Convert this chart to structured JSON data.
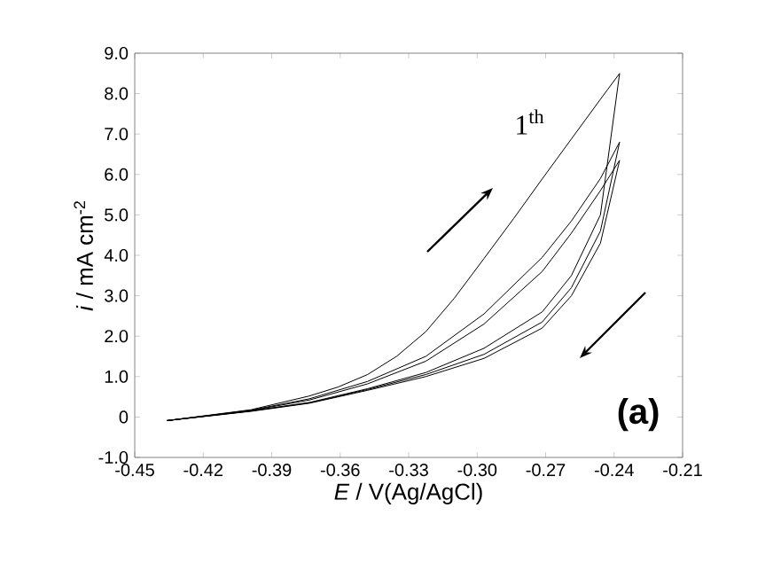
{
  "chart_data": {
    "type": "line",
    "xlabel": "*E* / V(Ag/AgCl)",
    "ylabel": "*i* / mA cm$^{-2}$",
    "xlim": [
      -0.45,
      -0.21
    ],
    "ylim": [
      -1.0,
      9.0
    ],
    "xticks": [
      -0.45,
      -0.42,
      -0.39,
      -0.36,
      -0.33,
      {
        "value": -0.3,
        "label": "-0.30"
      },
      -0.27,
      -0.24,
      -0.21
    ],
    "yticks": [
      {
        "value": -1,
        "label": "-1.0"
      },
      0,
      {
        "value": 1,
        "label": "1.0"
      },
      {
        "value": 2,
        "label": "2.0"
      },
      {
        "value": 3,
        "label": "3.0"
      },
      {
        "value": 4,
        "label": "4.0"
      },
      {
        "value": 5,
        "label": "5.0"
      },
      {
        "value": 6,
        "label": "6.0"
      },
      {
        "value": 7,
        "label": "7.0"
      },
      {
        "value": 8,
        "label": "8.0"
      },
      {
        "value": 9,
        "label": "9.0"
      }
    ],
    "marker": "none",
    "line_style": "solid",
    "series": [
      {
        "color": "#000000",
        "x": [
          -0.436,
          -0.399,
          -0.3735,
          -0.361,
          -0.348,
          -0.3353,
          -0.3225,
          -0.31,
          -0.297,
          -0.284,
          -0.2715,
          -0.2587,
          -0.246,
          -0.2376
        ],
        "values": [
          -0.09,
          0.18,
          0.52,
          0.74,
          1.05,
          1.5,
          2.11,
          2.94,
          3.92,
          4.91,
          5.89,
          6.88,
          7.86,
          8.5
        ]
      },
      {
        "color": "#000000",
        "x": [
          -0.2376,
          -0.246,
          -0.2587,
          -0.2715,
          -0.297,
          -0.3225,
          -0.348,
          -0.3735,
          -0.399,
          -0.436,
          -0.399,
          -0.3735,
          -0.348,
          -0.3225,
          -0.297,
          -0.2715,
          -0.2587,
          -0.246,
          -0.2376
        ],
        "values": [
          8.5,
          5.0,
          3.5,
          2.6,
          1.7,
          1.1,
          0.7,
          0.36,
          0.15,
          -0.09,
          0.17,
          0.45,
          0.88,
          1.5,
          2.55,
          3.95,
          4.85,
          5.9,
          6.8
        ]
      },
      {
        "color": "#000000",
        "x": [
          -0.2376,
          -0.246,
          -0.2587,
          -0.2715,
          -0.297,
          -0.3225,
          -0.348,
          -0.3735,
          -0.399,
          -0.436,
          -0.399,
          -0.3735,
          -0.348,
          -0.3225,
          -0.297,
          -0.2715,
          -0.2587,
          -0.246,
          -0.2376
        ],
        "values": [
          6.8,
          4.6,
          3.2,
          2.35,
          1.55,
          1.05,
          0.68,
          0.35,
          0.15,
          -0.09,
          0.16,
          0.42,
          0.82,
          1.38,
          2.3,
          3.6,
          4.55,
          5.6,
          6.35
        ]
      },
      {
        "color": "#000000",
        "x": [
          -0.2376,
          -0.246,
          -0.2587,
          -0.2715,
          -0.297,
          -0.3225,
          -0.348,
          -0.3735,
          -0.399,
          -0.436
        ],
        "values": [
          6.35,
          4.3,
          3.0,
          2.2,
          1.45,
          1.0,
          0.66,
          0.34,
          0.14,
          -0.09
        ]
      }
    ],
    "annotations": [
      "1$^{th}$",
      "(a)"
    ]
  }
}
